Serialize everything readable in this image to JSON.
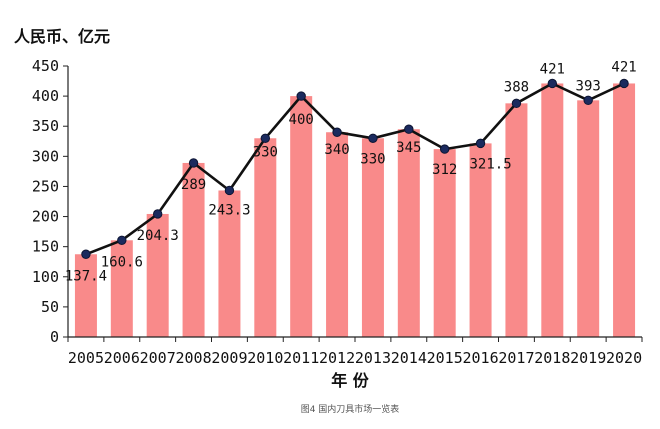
{
  "chart_data": {
    "type": "bar",
    "unit_label": "人民币、亿元",
    "xlabel": "年  份",
    "caption": "图4 国内刀具市场一览表",
    "categories": [
      "2005",
      "2006",
      "2007",
      "2008",
      "2009",
      "2010",
      "2011",
      "2012",
      "2013",
      "2014",
      "2015",
      "2016",
      "2017",
      "2018",
      "2019",
      "2020"
    ],
    "values": [
      137.4,
      160.6,
      204.3,
      289,
      243.3,
      330,
      400,
      340,
      330,
      345,
      312,
      321.5,
      388,
      421,
      393,
      421
    ],
    "value_labels": [
      "137.4",
      "160.6",
      "204.3",
      "289",
      "243.3",
      "330",
      "400",
      "340",
      "330",
      "345",
      "312",
      "321.5",
      "388",
      "421",
      "393",
      "421"
    ],
    "overlay": "line",
    "ylim": [
      0,
      450
    ],
    "yticks": [
      0,
      50,
      100,
      150,
      200,
      250,
      300,
      350,
      400,
      450
    ],
    "grid": false,
    "legend": "none"
  },
  "colors": {
    "bar": "#f98a8a",
    "line": "#111111",
    "marker": "#1b2a5e",
    "axis": "#222222"
  }
}
